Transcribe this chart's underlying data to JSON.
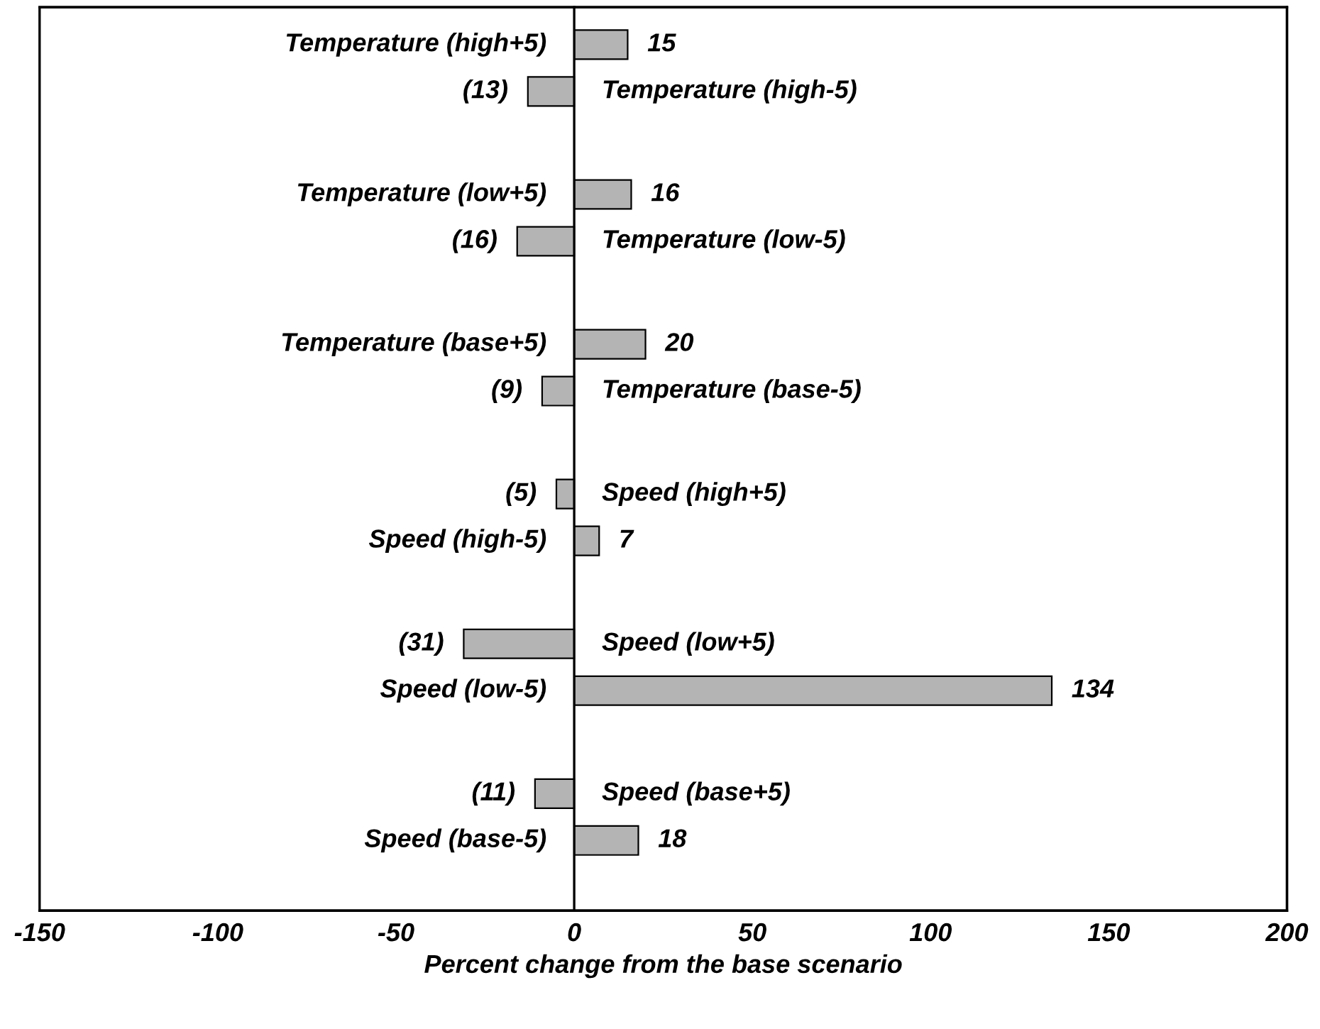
{
  "chart_data": {
    "type": "bar",
    "orientation": "horizontal",
    "xlabel": "Percent change from the base scenario",
    "categories": [
      "Temperature (high+5)",
      "Temperature (high-5)",
      "Temperature (low+5)",
      "Temperature (low-5)",
      "Temperature (base+5)",
      "Temperature (base-5)",
      "Speed (high+5)",
      "Speed (high-5)",
      "Speed (low+5)",
      "Speed (low-5)",
      "Speed (base+5)",
      "Speed (base-5)"
    ],
    "values": [
      15,
      -13,
      16,
      -16,
      20,
      -9,
      -5,
      7,
      -31,
      134,
      -11,
      18
    ],
    "value_labels": [
      "15",
      "(13)",
      "16",
      "(16)",
      "20",
      "(9)",
      "(5)",
      "7",
      "(31)",
      "134",
      "(11)",
      "18"
    ],
    "color": "#b4b4b4",
    "xlim": [
      -150,
      200
    ],
    "xticks": [
      -150,
      -100,
      -50,
      0,
      50,
      100,
      150,
      200
    ],
    "tick_labels": "x",
    "grid": false,
    "legend": false
  }
}
